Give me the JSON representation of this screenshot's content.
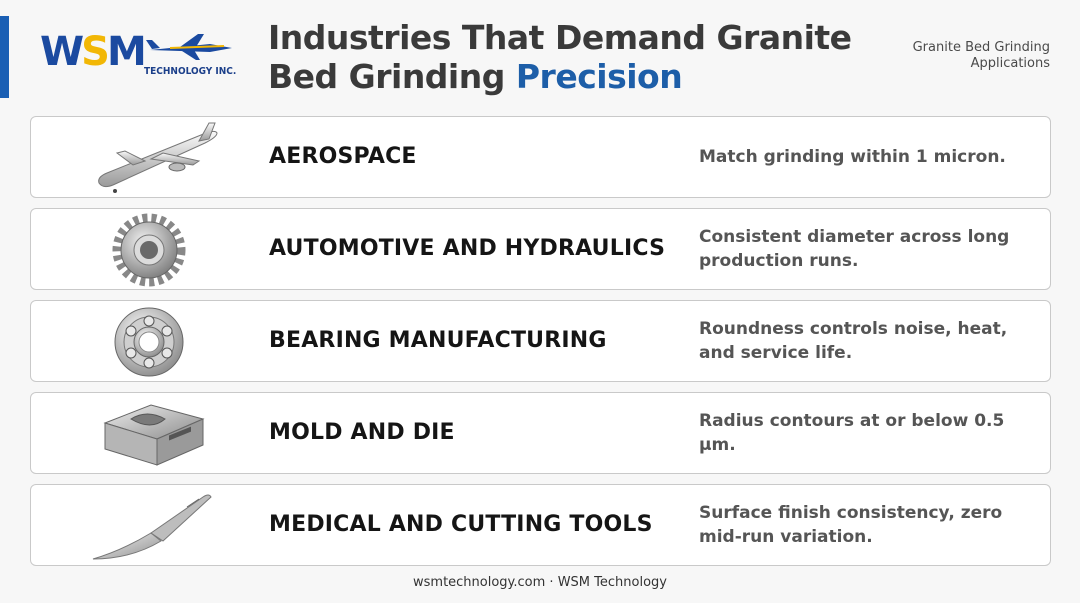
{
  "brand": {
    "logo_letters": [
      "W",
      "S",
      "M"
    ],
    "logo_subtext": "TECHNOLOGY INC.",
    "primary_color": "#1b4aa0",
    "accent_color": "#f2b705"
  },
  "header": {
    "title_line1": "Industries That Demand Granite",
    "title_line2_plain": "Bed Grinding ",
    "title_line2_highlight": "Precision",
    "subtitle": "Granite Bed Grinding Applications"
  },
  "industries": [
    {
      "icon": "airplane-icon",
      "name": "AEROSPACE",
      "description": "Match grinding within 1 micron."
    },
    {
      "icon": "gear-icon",
      "name": "AUTOMOTIVE AND HYDRAULICS",
      "description": "Consistent diameter across long production runs."
    },
    {
      "icon": "bearing-icon",
      "name": "BEARING MANUFACTURING",
      "description": "Roundness controls noise, heat, and service life."
    },
    {
      "icon": "mold-block-icon",
      "name": "MOLD AND DIE",
      "description": "Radius contours at or below 0.5 µm."
    },
    {
      "icon": "scalpel-icon",
      "name": "MEDICAL AND CUTTING TOOLS",
      "description": "Surface finish consistency, zero mid-run variation."
    }
  ],
  "footer": {
    "text": "wsmtechnology.com · WSM Technology"
  }
}
